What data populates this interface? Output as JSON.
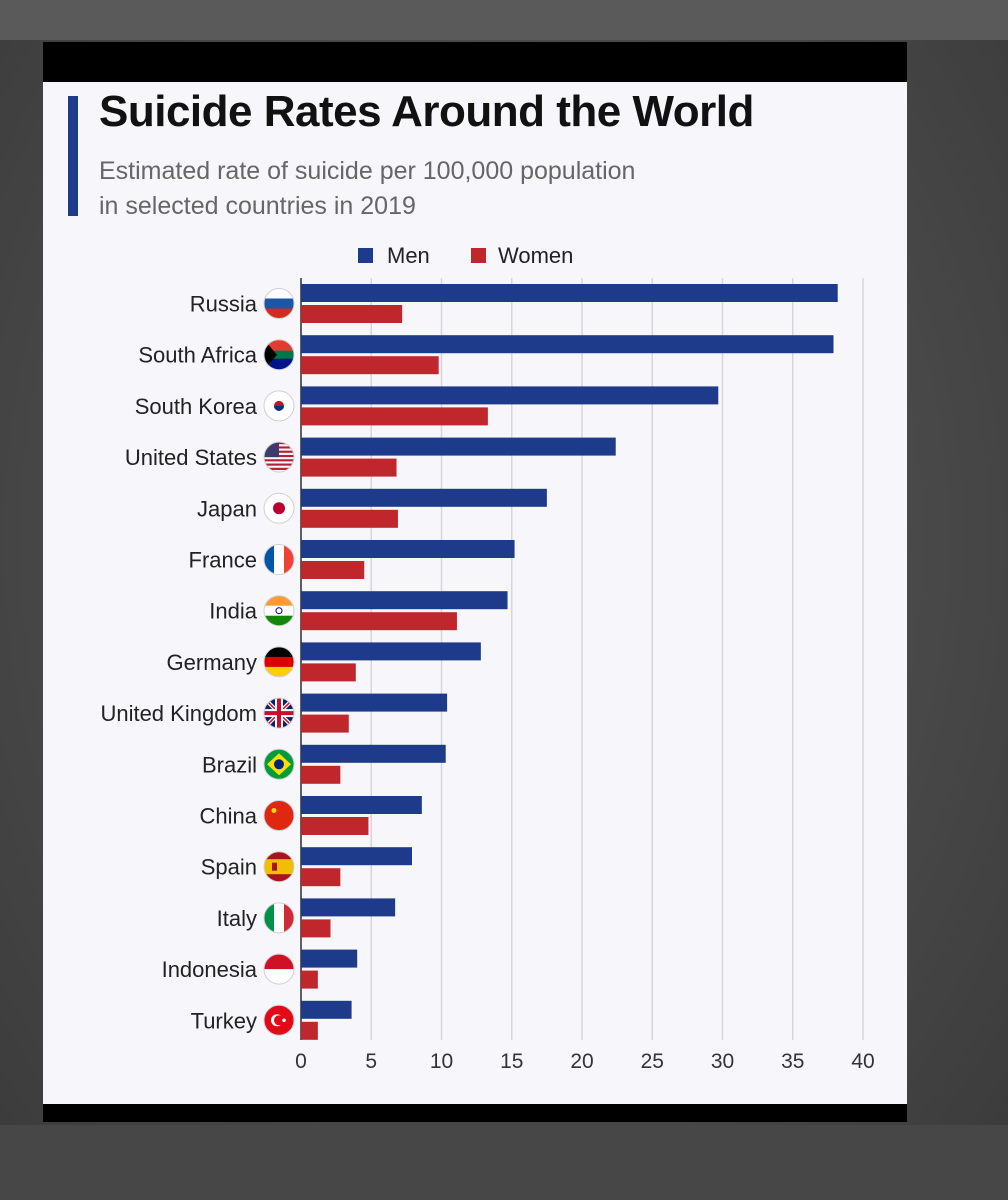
{
  "colors": {
    "men": "#1e3a8a",
    "women": "#c0272d",
    "accent": "#1f3a8a",
    "grid": "#d6d6de"
  },
  "header": {
    "title": "Suicide Rates Around the World",
    "subtitle_line1": "Estimated rate of suicide per 100,000 population",
    "subtitle_line2": "in selected countries in 2019"
  },
  "legend": {
    "men": "Men",
    "women": "Women"
  },
  "chart_data": {
    "type": "bar",
    "orientation": "horizontal",
    "title": "Suicide Rates Around the World",
    "subtitle": "Estimated rate of suicide per 100,000 population in selected countries in 2019",
    "categories": [
      "Russia",
      "South Africa",
      "South Korea",
      "United States",
      "Japan",
      "France",
      "India",
      "Germany",
      "United Kingdom",
      "Brazil",
      "China",
      "Spain",
      "Italy",
      "Indonesia",
      "Turkey"
    ],
    "series": [
      {
        "name": "Men",
        "values": [
          38.2,
          37.9,
          29.7,
          22.4,
          17.5,
          15.2,
          14.7,
          12.8,
          10.4,
          10.3,
          8.6,
          7.9,
          6.7,
          4.0,
          3.6
        ]
      },
      {
        "name": "Women",
        "values": [
          7.2,
          9.8,
          13.3,
          6.8,
          6.9,
          4.5,
          11.1,
          3.9,
          3.4,
          2.8,
          4.8,
          2.8,
          2.1,
          1.2,
          1.2
        ]
      }
    ],
    "xlim": [
      0,
      40
    ],
    "xticks": [
      0,
      5,
      10,
      15,
      20,
      25,
      30,
      35,
      40
    ],
    "grid": "vertical",
    "legend_position": "top"
  }
}
